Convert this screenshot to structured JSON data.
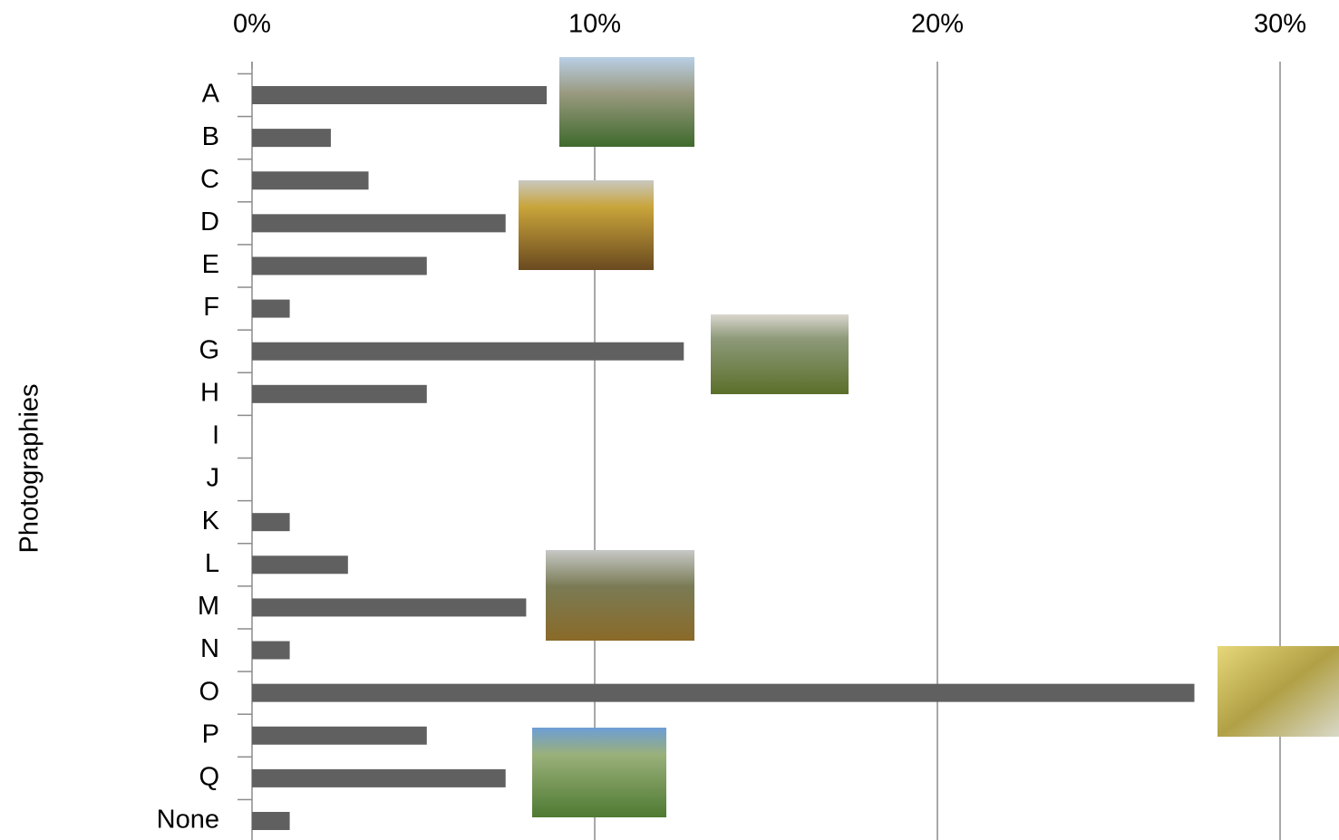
{
  "chart_data": {
    "type": "hbar",
    "y_label": "Photographies",
    "categories": [
      "A",
      "B",
      "C",
      "D",
      "E",
      "F",
      "G",
      "H",
      "I",
      "J",
      "K",
      "L",
      "M",
      "N",
      "O",
      "P",
      "Q",
      "None"
    ],
    "values": [
      8.6,
      2.3,
      3.4,
      7.4,
      5.1,
      1.1,
      12.6,
      5.1,
      0,
      0,
      1.1,
      2.8,
      8.0,
      1.1,
      27.5,
      5.1,
      7.4,
      1.1
    ],
    "color": "#606060",
    "xlim": [
      0,
      30
    ],
    "xticks": [
      {
        "value": 0,
        "label": "0%"
      },
      {
        "value": 10,
        "label": "10%"
      },
      {
        "value": 20,
        "label": "20%"
      },
      {
        "value": 30,
        "label": "30%"
      }
    ],
    "grid": true
  }
}
